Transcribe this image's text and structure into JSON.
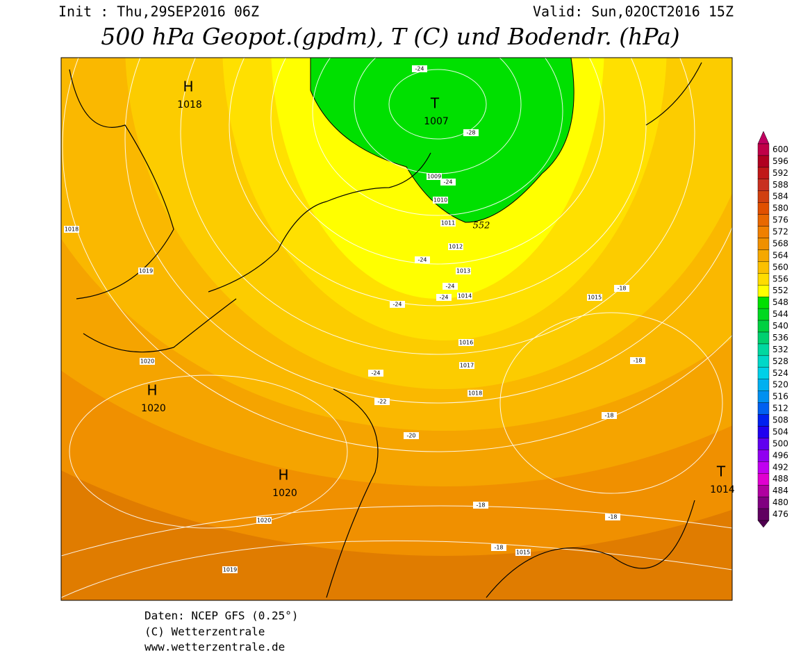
{
  "header": {
    "init": "Init : Thu,29SEP2016 06Z",
    "valid": "Valid: Sun,02OCT2016 15Z",
    "title": "500 hPa Geopot.(gpdm), T (C) und Bodendr. (hPa)"
  },
  "map": {
    "pressure_centers": [
      {
        "symbol": "H",
        "pressure": "1018"
      },
      {
        "symbol": "H",
        "pressure": "1020"
      },
      {
        "symbol": "H",
        "pressure": "1020"
      },
      {
        "symbol": "T",
        "pressure": "1007"
      },
      {
        "symbol": "T",
        "pressure": "1014"
      }
    ],
    "isobar_labels": [
      "1018",
      "1019",
      "1020",
      "1009",
      "1010",
      "1011",
      "1012",
      "1013",
      "1014",
      "1015",
      "1016",
      "1017",
      "1018",
      "1020",
      "1019",
      "1015"
    ],
    "temperature_labels": [
      "-24",
      "-28",
      "-24",
      "-24",
      "-24",
      "-24",
      "-24",
      "-18",
      "-24",
      "-22",
      "-20",
      "-18",
      "-18",
      "-18",
      "-18",
      "-18"
    ],
    "contour_label": "552"
  },
  "colorbar": {
    "ticks": [
      600,
      596,
      592,
      588,
      584,
      580,
      576,
      572,
      568,
      564,
      560,
      556,
      552,
      548,
      544,
      540,
      536,
      532,
      528,
      524,
      520,
      516,
      512,
      508,
      504,
      500,
      496,
      492,
      488,
      484,
      480,
      476
    ],
    "colors": [
      "#c00048",
      "#b00020",
      "#c01818",
      "#c83020",
      "#d04010",
      "#e05000",
      "#e86800",
      "#f08000",
      "#f09000",
      "#f5a800",
      "#fbc000",
      "#ffdc00",
      "#ffff00",
      "#00e000",
      "#00d820",
      "#00d040",
      "#00d070",
      "#00d8a0",
      "#00d8c8",
      "#00d0e8",
      "#00b0f0",
      "#0090f0",
      "#0060f0",
      "#0020f0",
      "#2000f0",
      "#6000f0",
      "#9000f0",
      "#c000f0",
      "#e000d0",
      "#b000a0",
      "#800080",
      "#600060"
    ]
  },
  "footer": {
    "source": "Daten: NCEP GFS (0.25°)",
    "copyright": "(C) Wetterzentrale",
    "url": "www.wetterzentrale.de"
  }
}
